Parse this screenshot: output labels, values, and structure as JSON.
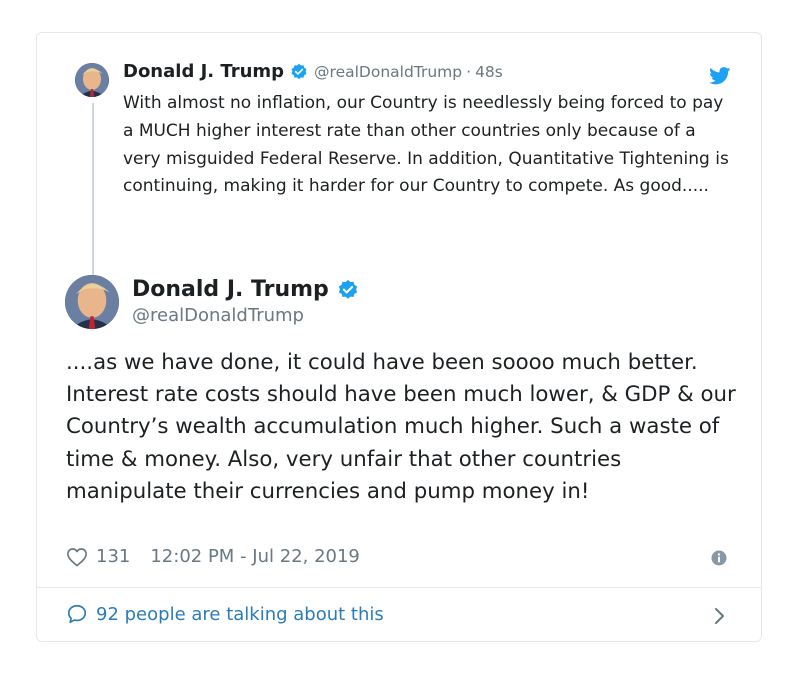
{
  "quoted_tweet": {
    "author_name": "Donald J. Trump",
    "handle": "@realDonaldTrump",
    "separator": "·",
    "time_ago": "48s",
    "text": "With almost no inflation, our Country is needlessly being forced to pay a MUCH higher interest rate than other countries only because of a very misguided Federal Reserve. In addition, Quantitative Tightening is continuing, making it harder for our Country to compete. As good....."
  },
  "main_tweet": {
    "author_name": "Donald J. Trump",
    "handle": "@realDonaldTrump",
    "text": "....as we have done, it could have been soooo much better. Interest rate costs should have been much lower, & GDP & our Country’s wealth accumulation much higher. Such a waste of time & money. Also, very unfair that other countries manipulate their currencies and pump money in!",
    "likes": "131",
    "timestamp": "12:02 PM - Jul 22, 2019"
  },
  "footer": {
    "talking_label": "92 people are talking about this"
  },
  "icons": {
    "verified": "verified-badge-icon",
    "twitter": "twitter-bird-icon",
    "like": "heart-icon",
    "info": "info-icon",
    "reply": "speech-bubble-icon",
    "chevron": "chevron-right-icon"
  },
  "colors": {
    "accent": "#1da1f2",
    "link": "#2b7bb9",
    "muted": "#697882",
    "text": "#1c2022",
    "border": "#e1e8ed"
  }
}
